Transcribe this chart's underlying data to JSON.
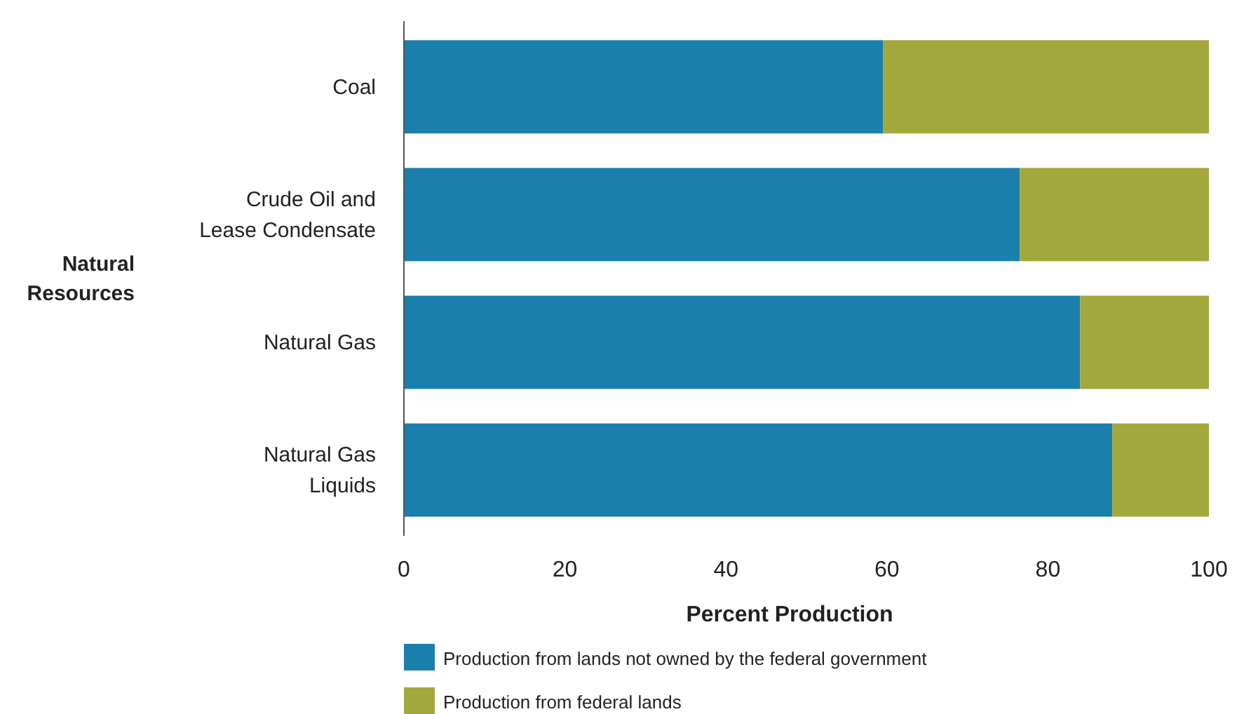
{
  "chart_data": {
    "type": "bar",
    "orientation": "horizontal",
    "stacked": true,
    "categories": [
      "Coal",
      "Crude Oil and Lease Condensate",
      "Natural Gas",
      "Natural Gas Liquids"
    ],
    "series": [
      {
        "name": "Production from lands not owned by the federal government",
        "color": "#1b7fad",
        "values": [
          59.5,
          76.5,
          84,
          88
        ]
      },
      {
        "name": "Production from federal lands",
        "color": "#a2a83c",
        "values": [
          40.5,
          23.5,
          16,
          12
        ]
      }
    ],
    "xlim": [
      0,
      100
    ],
    "xticks": [
      0,
      20,
      40,
      60,
      80,
      100
    ],
    "xlabel": "Percent Production",
    "ylabel": "Natural Resources",
    "legend": "bottom",
    "grid": false
  }
}
